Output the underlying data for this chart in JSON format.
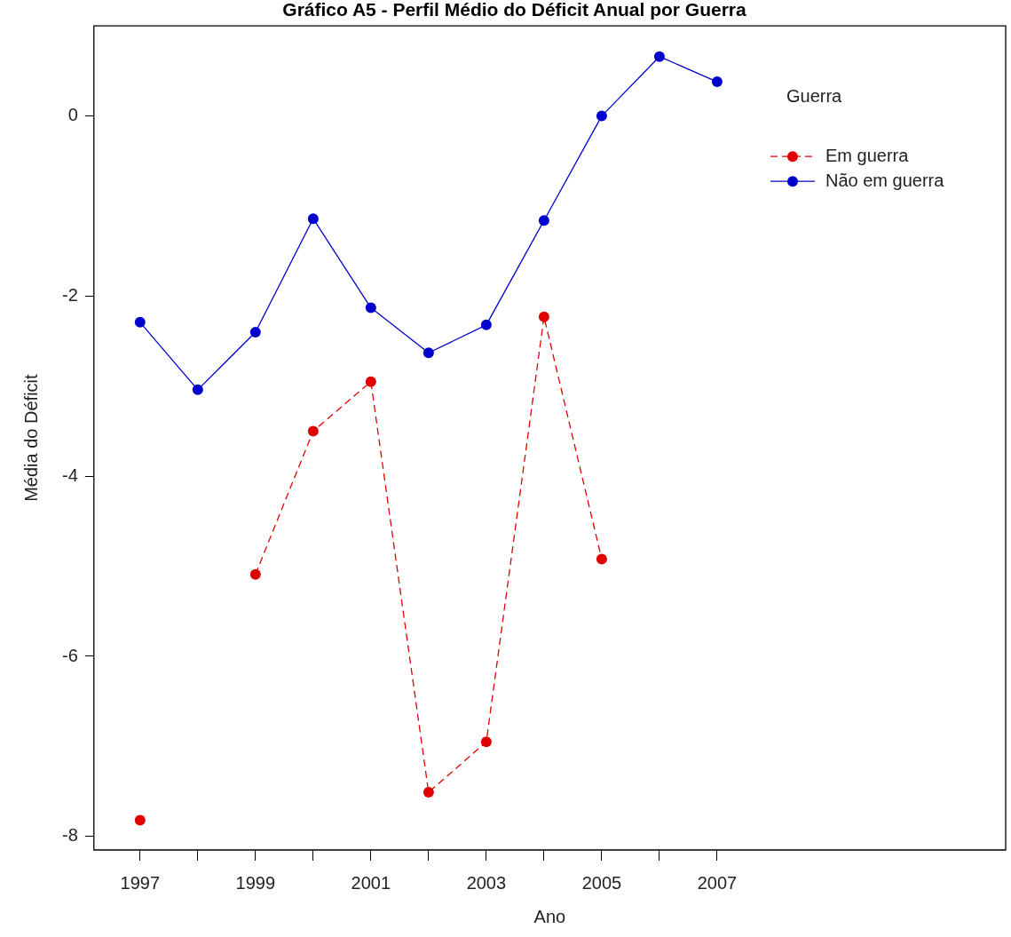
{
  "chart_data": {
    "type": "line",
    "title": "Gráfico A5 - Perfil Médio do Déficit Anual por Guerra",
    "xlabel": "Ano",
    "ylabel": "Média do Déficit",
    "legend_title": "Guerra",
    "x": [
      1997,
      1998,
      1999,
      2000,
      2001,
      2002,
      2003,
      2004,
      2005,
      2006,
      2007
    ],
    "series": [
      {
        "name": "Em guerra",
        "color": "#e00000",
        "line_style": "dashed",
        "values": [
          -7.82,
          null,
          -5.09,
          -3.5,
          -2.95,
          -7.51,
          -6.95,
          -2.23,
          -4.92,
          null,
          null
        ]
      },
      {
        "name": "Não em guerra",
        "color": "#0000cc",
        "line_style": "solid",
        "values": [
          -2.29,
          -3.04,
          -2.4,
          -1.14,
          -2.13,
          -2.63,
          -2.32,
          -1.16,
          0.0,
          0.66,
          0.38
        ]
      }
    ],
    "xlim": [
      1996.2,
      2012
    ],
    "ylim": [
      -8.15,
      1.0
    ],
    "xticks": [
      1997,
      {
        "value": 1998,
        "label": null
      },
      1999,
      {
        "value": 2000,
        "label": null
      },
      2001,
      {
        "value": 2002,
        "label": null
      },
      2003,
      {
        "value": 2004,
        "label": null
      },
      2005,
      {
        "value": 2006,
        "label": null
      },
      2007
    ],
    "yticks": [
      -8,
      -6,
      -4,
      -2,
      0
    ],
    "marker": "circle",
    "grid": false,
    "legend": "top right"
  }
}
